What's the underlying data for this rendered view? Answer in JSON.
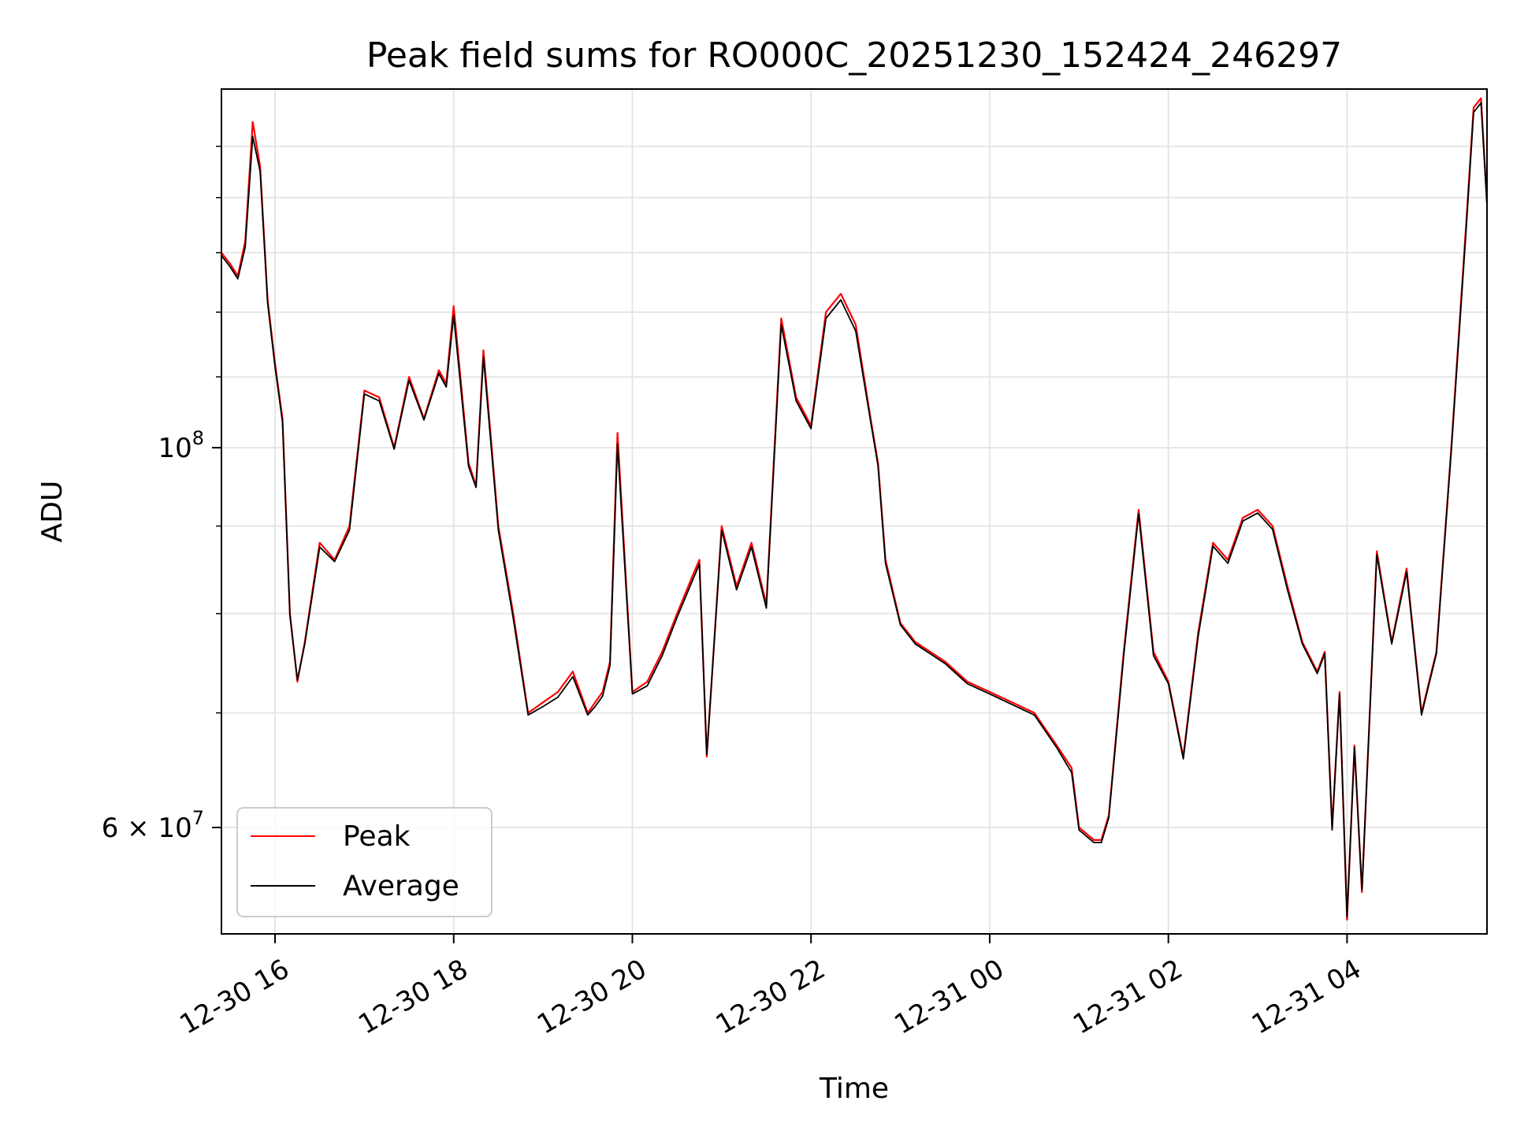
{
  "chart_data": {
    "type": "line",
    "title": "Peak field sums for RO000C_20251230_152424_246297",
    "xlabel": "Time",
    "ylabel": "ADU",
    "yscale": "log",
    "grid": true,
    "legend_placement": "lower-left",
    "x_ticks": [
      "12-30 16",
      "12-30 18",
      "12-30 20",
      "12-30 22",
      "12-31 00",
      "12-31 02",
      "12-31 04"
    ],
    "y_ticks": [
      {
        "value": 100000000,
        "base": "10",
        "exp": "8"
      },
      {
        "value": 60000000,
        "mant": "6",
        "times": "×",
        "base": "10",
        "exp": "7"
      }
    ],
    "x_range": [
      "2025-12-30 15:24",
      "2025-12-31 05:34"
    ],
    "ylim": [
      52000000,
      162000000
    ],
    "x": [
      "2025-12-30 15:24",
      "2025-12-30 15:30",
      "2025-12-30 15:35",
      "2025-12-30 15:40",
      "2025-12-30 15:45",
      "2025-12-30 15:50",
      "2025-12-30 15:55",
      "2025-12-30 16:00",
      "2025-12-30 16:05",
      "2025-12-30 16:10",
      "2025-12-30 16:15",
      "2025-12-30 16:20",
      "2025-12-30 16:30",
      "2025-12-30 16:40",
      "2025-12-30 16:50",
      "2025-12-30 17:00",
      "2025-12-30 17:10",
      "2025-12-30 17:20",
      "2025-12-30 17:30",
      "2025-12-30 17:40",
      "2025-12-30 17:50",
      "2025-12-30 17:55",
      "2025-12-30 18:00",
      "2025-12-30 18:10",
      "2025-12-30 18:15",
      "2025-12-30 18:20",
      "2025-12-30 18:30",
      "2025-12-30 18:40",
      "2025-12-30 18:50",
      "2025-12-30 19:00",
      "2025-12-30 19:10",
      "2025-12-30 19:20",
      "2025-12-30 19:30",
      "2025-12-30 19:35",
      "2025-12-30 19:40",
      "2025-12-30 19:45",
      "2025-12-30 19:50",
      "2025-12-30 20:00",
      "2025-12-30 20:10",
      "2025-12-30 20:20",
      "2025-12-30 20:30",
      "2025-12-30 20:40",
      "2025-12-30 20:45",
      "2025-12-30 20:50",
      "2025-12-30 21:00",
      "2025-12-30 21:10",
      "2025-12-30 21:20",
      "2025-12-30 21:30",
      "2025-12-30 21:40",
      "2025-12-30 21:50",
      "2025-12-30 22:00",
      "2025-12-30 22:10",
      "2025-12-30 22:20",
      "2025-12-30 22:30",
      "2025-12-30 22:40",
      "2025-12-30 22:45",
      "2025-12-30 22:50",
      "2025-12-30 23:00",
      "2025-12-30 23:10",
      "2025-12-30 23:20",
      "2025-12-30 23:30",
      "2025-12-30 23:45",
      "2025-12-31 00:00",
      "2025-12-31 00:15",
      "2025-12-31 00:30",
      "2025-12-31 00:45",
      "2025-12-31 00:55",
      "2025-12-31 01:00",
      "2025-12-31 01:10",
      "2025-12-31 01:15",
      "2025-12-31 01:20",
      "2025-12-31 01:30",
      "2025-12-31 01:40",
      "2025-12-31 01:50",
      "2025-12-31 02:00",
      "2025-12-31 02:10",
      "2025-12-31 02:20",
      "2025-12-31 02:30",
      "2025-12-31 02:40",
      "2025-12-31 02:50",
      "2025-12-31 03:00",
      "2025-12-31 03:10",
      "2025-12-31 03:20",
      "2025-12-31 03:30",
      "2025-12-31 03:40",
      "2025-12-31 03:45",
      "2025-12-31 03:50",
      "2025-12-31 03:55",
      "2025-12-31 04:00",
      "2025-12-31 04:05",
      "2025-12-31 04:10",
      "2025-12-31 04:20",
      "2025-12-31 04:30",
      "2025-12-31 04:40",
      "2025-12-31 04:50",
      "2025-12-31 05:00",
      "2025-12-31 05:10",
      "2025-12-31 05:20",
      "2025-12-31 05:25",
      "2025-12-31 05:30",
      "2025-12-31 05:34"
    ],
    "series": [
      {
        "name": "Peak",
        "color": "#ff0000",
        "values": [
          130000000,
          128000000,
          126000000,
          132000000,
          155000000,
          146000000,
          122000000,
          112000000,
          104000000,
          80000000,
          73000000,
          77000000,
          88000000,
          86000000,
          90000000,
          108000000,
          107000000,
          100000000,
          110000000,
          104000000,
          111000000,
          109000000,
          121000000,
          98000000,
          95000000,
          114000000,
          90000000,
          80000000,
          70000000,
          71000000,
          72000000,
          74000000,
          70000000,
          71000000,
          72000000,
          75000000,
          102000000,
          72000000,
          73000000,
          76000000,
          80000000,
          84000000,
          86000000,
          66000000,
          90000000,
          83000000,
          88000000,
          81000000,
          119000000,
          107000000,
          103000000,
          120000000,
          123000000,
          118000000,
          104000000,
          98000000,
          86000000,
          79000000,
          77000000,
          76000000,
          75000000,
          73000000,
          72000000,
          71000000,
          70000000,
          67000000,
          65000000,
          60000000,
          59000000,
          59000000,
          61000000,
          76000000,
          92000000,
          76000000,
          73000000,
          66000000,
          78000000,
          88000000,
          86000000,
          91000000,
          92000000,
          90000000,
          83000000,
          77000000,
          74000000,
          76000000,
          60000000,
          72000000,
          53000000,
          67000000,
          55000000,
          87000000,
          77000000,
          85000000,
          70000000,
          76000000,
          100000000,
          135000000,
          158000000,
          160000000,
          139000000
        ]
      },
      {
        "name": "Average",
        "color": "#000000",
        "values": [
          129500000,
          127500000,
          125500000,
          131000000,
          152000000,
          145000000,
          121500000,
          111500000,
          103500000,
          79800000,
          73200000,
          76800000,
          87500000,
          85800000,
          89500000,
          107500000,
          106500000,
          99800000,
          109500000,
          103800000,
          110500000,
          108500000,
          119500000,
          97500000,
          94800000,
          113000000,
          89500000,
          79500000,
          69800000,
          70600000,
          71500000,
          73500000,
          69800000,
          70600000,
          71600000,
          74600000,
          100500000,
          71800000,
          72600000,
          75600000,
          79600000,
          83500000,
          85500000,
          66200000,
          89500000,
          82600000,
          87500000,
          80600000,
          118000000,
          106500000,
          102600000,
          119000000,
          122000000,
          117000000,
          103600000,
          97600000,
          85600000,
          78800000,
          76800000,
          75800000,
          74800000,
          72800000,
          71800000,
          70800000,
          69800000,
          66800000,
          64600000,
          59800000,
          58800000,
          58800000,
          60800000,
          75600000,
          91500000,
          75600000,
          72800000,
          65800000,
          77600000,
          87600000,
          85600000,
          90600000,
          91600000,
          89600000,
          82600000,
          76800000,
          73800000,
          75800000,
          59800000,
          71800000,
          53200000,
          66800000,
          55200000,
          86600000,
          76800000,
          84600000,
          69800000,
          75800000,
          99600000,
          134000000,
          157000000,
          159000000,
          138500000
        ]
      }
    ]
  }
}
